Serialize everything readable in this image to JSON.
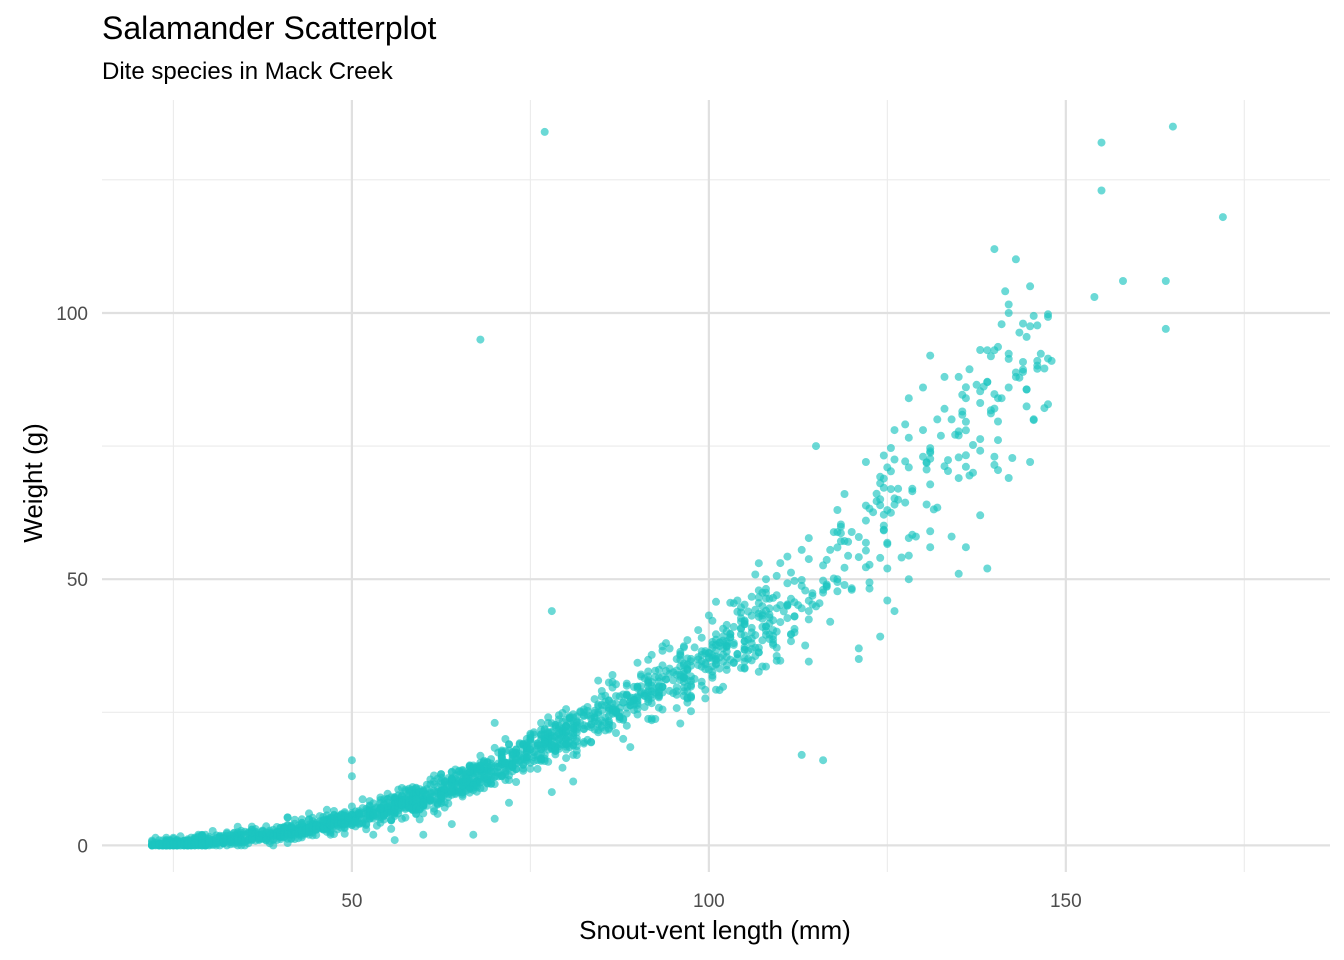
{
  "chart_data": {
    "type": "scatter",
    "title": "Salamander Scatterplot",
    "subtitle": "Dite species in Mack Creek",
    "xlabel": "Snout-vent length (mm)",
    "ylabel": "Weight (g)",
    "xlim": [
      15,
      187
    ],
    "ylim": [
      -5,
      140
    ],
    "x_ticks": [
      50,
      100,
      150
    ],
    "x_tick_labels": [
      "50",
      "100",
      "150"
    ],
    "y_ticks": [
      0,
      50,
      100
    ],
    "y_tick_labels": [
      "0",
      "50",
      "100"
    ],
    "x_minor_grid": [
      25,
      75,
      125,
      175
    ],
    "y_minor_grid": [
      25,
      75,
      125
    ],
    "grid": true,
    "legend": "none",
    "point_color": "#1CC5C0",
    "point_opacity": 0.65,
    "trend": {
      "description": "weight follows a power curve of length",
      "x_range": [
        24,
        150
      ],
      "approx_points": [
        [
          25,
          0.3
        ],
        [
          30,
          0.7
        ],
        [
          40,
          2.3
        ],
        [
          50,
          5
        ],
        [
          60,
          9
        ],
        [
          70,
          14
        ],
        [
          80,
          21
        ],
        [
          90,
          28
        ],
        [
          100,
          35
        ],
        [
          110,
          44
        ],
        [
          120,
          56
        ],
        [
          130,
          70
        ],
        [
          140,
          85
        ],
        [
          145,
          92
        ]
      ]
    },
    "points": [
      [
        77,
        134
      ],
      [
        68,
        95
      ],
      [
        78,
        44
      ],
      [
        165,
        135
      ],
      [
        155,
        132
      ],
      [
        155,
        123
      ],
      [
        172,
        118
      ],
      [
        140,
        112
      ],
      [
        145,
        105
      ],
      [
        154,
        103
      ],
      [
        158,
        106
      ],
      [
        164,
        106
      ],
      [
        164,
        97
      ],
      [
        142,
        100
      ],
      [
        144,
        98
      ],
      [
        140,
        93
      ],
      [
        148,
        91
      ],
      [
        146,
        91
      ],
      [
        131,
        92
      ],
      [
        139,
        87
      ],
      [
        142,
        86
      ],
      [
        143,
        88
      ],
      [
        141,
        84
      ],
      [
        136,
        84
      ],
      [
        133,
        88
      ],
      [
        135,
        88
      ],
      [
        133,
        82
      ],
      [
        128,
        84
      ],
      [
        132,
        80
      ],
      [
        130,
        86
      ],
      [
        134,
        80
      ],
      [
        135,
        77
      ],
      [
        126,
        78
      ],
      [
        130,
        78
      ],
      [
        115,
        75
      ],
      [
        140,
        73
      ],
      [
        145,
        72
      ],
      [
        142,
        69
      ],
      [
        130,
        73
      ],
      [
        128,
        71
      ],
      [
        125,
        71
      ],
      [
        122,
        72
      ],
      [
        124,
        68
      ],
      [
        119,
        66
      ],
      [
        122,
        61
      ],
      [
        118,
        63
      ],
      [
        126,
        64
      ],
      [
        129,
        58
      ],
      [
        131,
        59
      ],
      [
        134,
        58
      ],
      [
        138,
        62
      ],
      [
        139,
        52
      ],
      [
        135,
        51
      ],
      [
        131,
        56
      ],
      [
        136,
        56
      ],
      [
        128,
        50
      ],
      [
        124,
        54
      ],
      [
        125,
        52
      ],
      [
        120,
        48
      ],
      [
        125,
        46
      ],
      [
        126,
        44
      ],
      [
        121,
        37
      ],
      [
        121,
        35
      ],
      [
        117,
        42
      ],
      [
        108,
        50
      ],
      [
        107,
        53
      ],
      [
        104,
        46
      ],
      [
        105,
        42
      ],
      [
        102,
        37
      ],
      [
        100,
        33
      ],
      [
        97,
        33
      ],
      [
        95,
        31
      ],
      [
        94,
        38
      ],
      [
        90,
        28
      ],
      [
        87,
        25
      ],
      [
        86,
        22
      ],
      [
        88,
        20
      ],
      [
        82,
        25
      ],
      [
        80,
        18
      ],
      [
        78,
        20
      ],
      [
        76,
        16
      ],
      [
        74,
        14
      ],
      [
        71,
        17
      ],
      [
        71,
        13
      ],
      [
        69,
        12
      ],
      [
        66,
        12
      ],
      [
        64,
        10
      ],
      [
        62,
        8
      ],
      [
        60,
        8
      ],
      [
        59,
        6
      ],
      [
        57,
        5
      ],
      [
        55,
        6
      ],
      [
        52,
        5
      ],
      [
        50,
        16
      ],
      [
        50,
        13
      ],
      [
        48,
        3
      ],
      [
        46,
        3
      ],
      [
        44,
        2
      ],
      [
        42,
        2
      ],
      [
        40,
        1.5
      ],
      [
        38,
        1
      ],
      [
        36,
        1
      ],
      [
        34,
        0.8
      ],
      [
        32,
        0.6
      ],
      [
        30,
        0.5
      ],
      [
        28,
        0.3
      ],
      [
        26,
        0.2
      ],
      [
        24,
        0.1
      ],
      [
        22,
        0.1
      ],
      [
        113,
        17
      ],
      [
        116,
        16
      ],
      [
        89,
        27
      ],
      [
        85,
        29
      ],
      [
        83,
        26
      ],
      [
        79,
        22
      ],
      [
        77,
        19
      ],
      [
        73,
        16
      ],
      [
        72,
        19
      ],
      [
        70,
        23
      ],
      [
        67,
        15
      ],
      [
        65,
        14
      ],
      [
        62,
        11
      ],
      [
        58,
        9
      ],
      [
        54,
        7
      ],
      [
        51,
        4
      ],
      [
        47,
        2
      ],
      [
        43,
        1.5
      ],
      [
        39,
        1
      ],
      [
        35,
        0.7
      ],
      [
        31,
        0.4
      ],
      [
        27,
        0.2
      ],
      [
        60,
        2
      ],
      [
        56,
        1
      ],
      [
        53,
        2
      ],
      [
        67,
        2
      ],
      [
        72,
        8
      ],
      [
        78,
        10
      ],
      [
        81,
        12
      ],
      [
        70,
        5
      ],
      [
        64,
        4
      ],
      [
        109,
        38
      ],
      [
        112,
        40
      ],
      [
        114,
        44
      ],
      [
        116,
        48
      ],
      [
        118,
        50
      ],
      [
        111,
        45
      ],
      [
        106,
        40
      ],
      [
        103,
        39
      ],
      [
        101,
        35
      ],
      [
        99,
        30
      ],
      [
        96,
        32
      ],
      [
        92,
        30
      ],
      [
        93,
        28
      ],
      [
        91,
        26
      ],
      [
        84,
        24
      ],
      [
        81,
        22
      ],
      [
        75,
        18
      ],
      [
        68,
        15
      ],
      [
        63,
        12
      ],
      [
        61,
        9
      ],
      [
        57,
        8
      ],
      [
        53,
        6
      ],
      [
        49,
        4
      ],
      [
        45,
        3
      ],
      [
        41,
        2
      ],
      [
        37,
        1
      ],
      [
        33,
        0.7
      ],
      [
        29,
        0.4
      ],
      [
        25,
        0.2
      ],
      [
        23,
        0.1
      ]
    ]
  }
}
